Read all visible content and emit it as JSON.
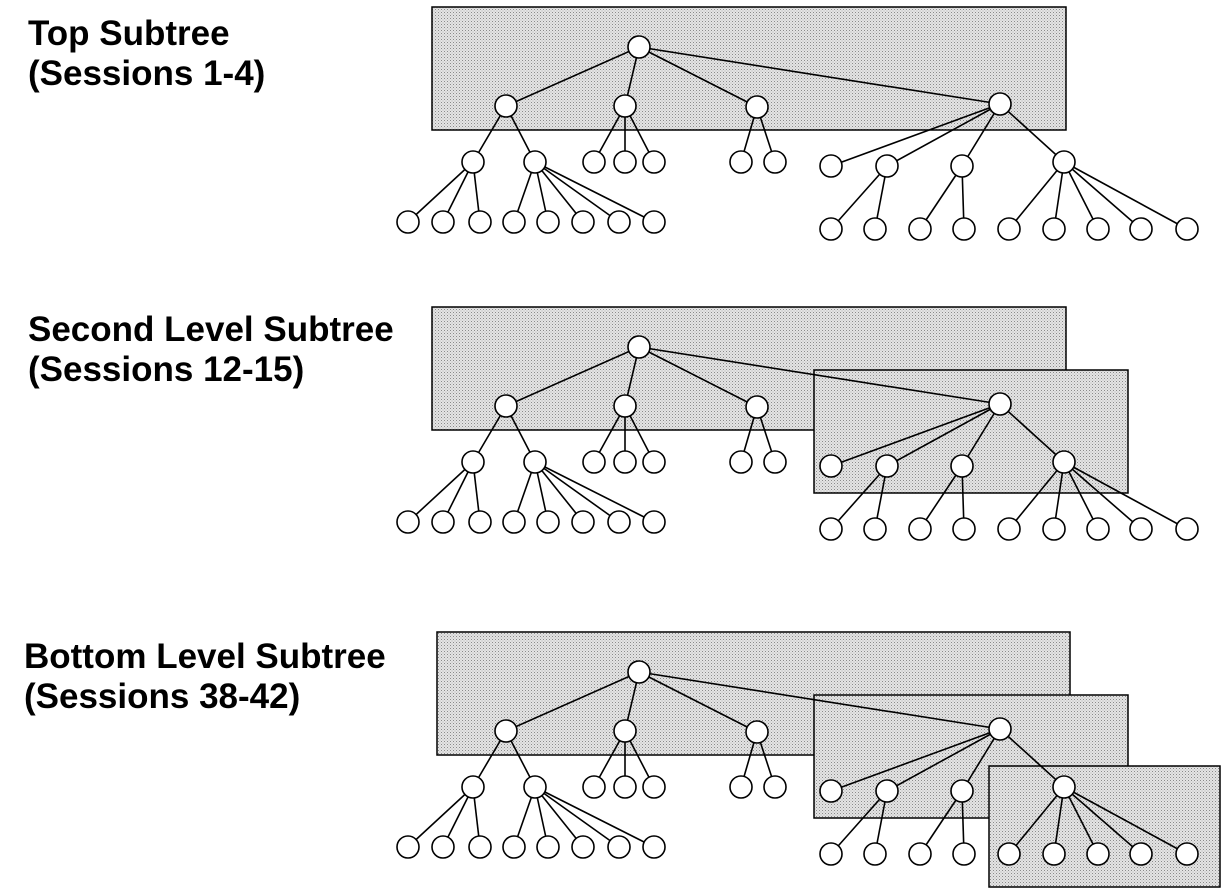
{
  "panels": [
    {
      "title": "Top Subtree",
      "subtitle": "(Sessions 1-4)",
      "highlighted_levels": "top"
    },
    {
      "title": "Second Level Subtree",
      "subtitle": "(Sessions 12-15)",
      "highlighted_levels": "second"
    },
    {
      "title": "Bottom Level Subtree",
      "subtitle": "(Sessions 38-42)",
      "highlighted_levels": "bottom"
    }
  ],
  "colors": {
    "shade": "#d8d8d8",
    "stroke": "#000000",
    "node_fill": "#ffffff"
  }
}
